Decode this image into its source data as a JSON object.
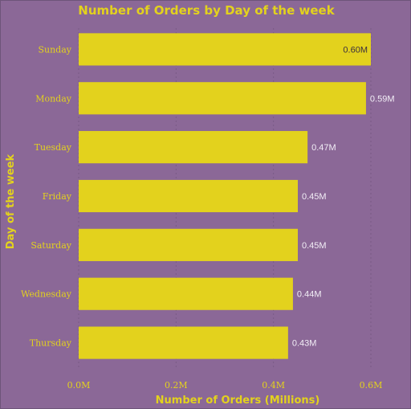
{
  "chart_data": {
    "type": "bar",
    "orientation": "horizontal",
    "title": "Number of Orders by Day of the week",
    "xlabel": "Number of Orders (Millions)",
    "ylabel": "Day of the week",
    "categories": [
      "Sunday",
      "Monday",
      "Tuesday",
      "Friday",
      "Saturday",
      "Wednesday",
      "Thursday"
    ],
    "values": [
      0.6,
      0.59,
      0.47,
      0.45,
      0.45,
      0.44,
      0.43
    ],
    "data_labels": [
      "0.60M",
      "0.59M",
      "0.47M",
      "0.45M",
      "0.45M",
      "0.44M",
      "0.43M"
    ],
    "x_ticks": [
      0,
      0.2,
      0.4,
      0.6
    ],
    "x_tick_labels": [
      "0.0M",
      "0.2M",
      "0.4M",
      "0.6M"
    ],
    "xlim": [
      0,
      0.6
    ],
    "grid": "vertical dotted",
    "colors": {
      "background": "#8b6897",
      "bar": "#e3d21d",
      "text": "#e3d21d",
      "data_label": "#f2eef6"
    }
  }
}
